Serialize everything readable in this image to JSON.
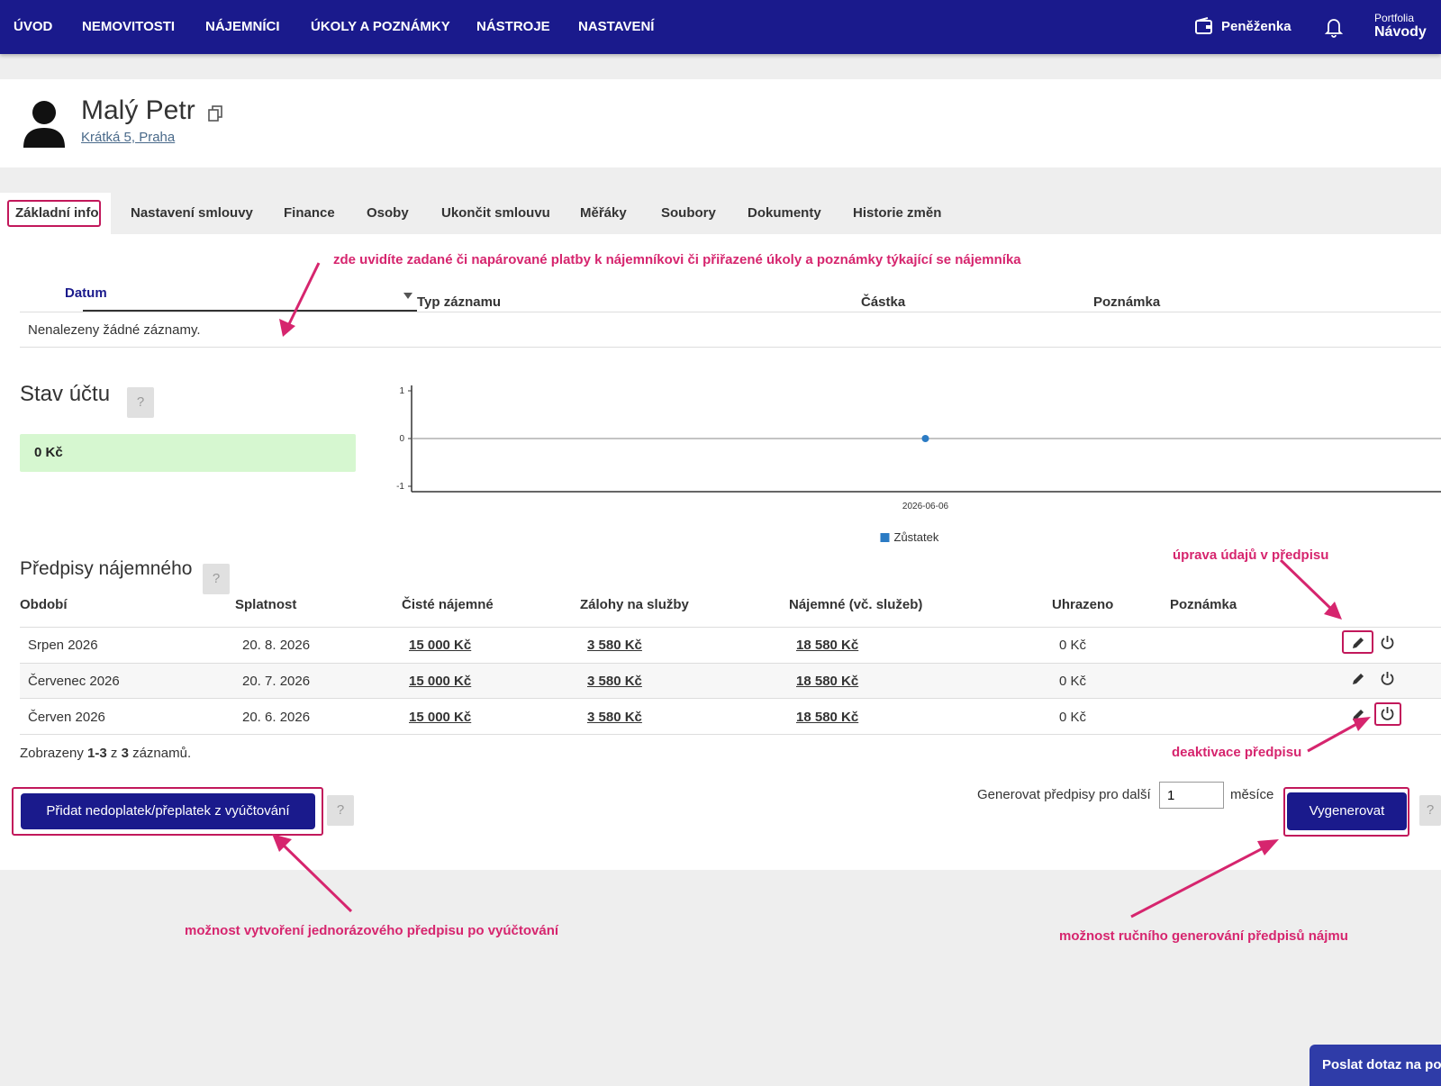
{
  "nav": {
    "items": [
      "ÚVOD",
      "NEMOVITOSTI",
      "NÁJEMNÍCI",
      "ÚKOLY A POZNÁMKY",
      "NÁSTROJE",
      "NASTAVENÍ"
    ],
    "wallet_label": "Peněženka",
    "portfolia_label": "Portfolia",
    "navody_label": "Návody"
  },
  "tenant": {
    "name": "Malý Petr",
    "address": "Krátká 5, Praha"
  },
  "tabs": [
    "Základní info",
    "Nastavení smlouvy",
    "Finance",
    "Osoby",
    "Ukončit smlouvu",
    "Měřáky",
    "Soubory",
    "Dokumenty",
    "Historie změn"
  ],
  "annotations": {
    "records": "zde uvidíte zadané či napárované platby k nájemníkovi či přiřazené úkoly a poznámky týkající se nájemníka",
    "edit": "úprava údajů v předpisu",
    "deactivate": "deaktivace předpisu",
    "one_time": "možnost vytvoření jednorázového předpisu po vyúčtování",
    "manual": "možnost ručního generování předpisů nájmu"
  },
  "records_table": {
    "headers": [
      "Datum",
      "Typ záznamu",
      "Částka",
      "Poznámka"
    ],
    "empty": "Nenalezeny žádné záznamy."
  },
  "account": {
    "title": "Stav účtu",
    "balance": "0 Kč",
    "help": "?"
  },
  "chart_data": {
    "type": "line",
    "x": [
      "2026-06-06"
    ],
    "series": [
      {
        "name": "Zůstatek",
        "values": [
          0
        ]
      }
    ],
    "ylim": [
      -1,
      1
    ],
    "yticks": [
      "1",
      "0",
      "-1"
    ],
    "xticks": [
      "2026-06-06"
    ],
    "color": "#2b7bc4"
  },
  "prescriptions": {
    "title": "Předpisy nájemného",
    "help": "?",
    "headers": [
      "Období",
      "Splatnost",
      "Čisté nájemné",
      "Zálohy na služby",
      "Nájemné (vč. služeb)",
      "Uhrazeno",
      "Poznámka"
    ],
    "rows": [
      {
        "period": "Srpen 2026",
        "due": "20. 8. 2026",
        "rent": "15 000 Kč",
        "deposits": "3 580 Kč",
        "total": "18 580 Kč",
        "paid": "0 Kč"
      },
      {
        "period": "Červenec 2026",
        "due": "20. 7. 2026",
        "rent": "15 000 Kč",
        "deposits": "3 580 Kč",
        "total": "18 580 Kč",
        "paid": "0 Kč"
      },
      {
        "period": "Červen 2026",
        "due": "20. 6. 2026",
        "rent": "15 000 Kč",
        "deposits": "3 580 Kč",
        "total": "18 580 Kč",
        "paid": "0 Kč"
      }
    ],
    "shown_prefix": "Zobrazeny",
    "shown_range": "1-3",
    "shown_mid": "z",
    "shown_count": "3",
    "shown_suffix": "záznamů."
  },
  "actions": {
    "add_button": "Přidat nedoplatek/přeplatek z vyúčtování",
    "help": "?",
    "generate_prefix": "Generovat předpisy pro další",
    "generate_value": "1",
    "generate_suffix": "měsíce",
    "generate_button": "Vygenerovat"
  },
  "chat": {
    "label": "Poslat dotaz na podporu"
  }
}
